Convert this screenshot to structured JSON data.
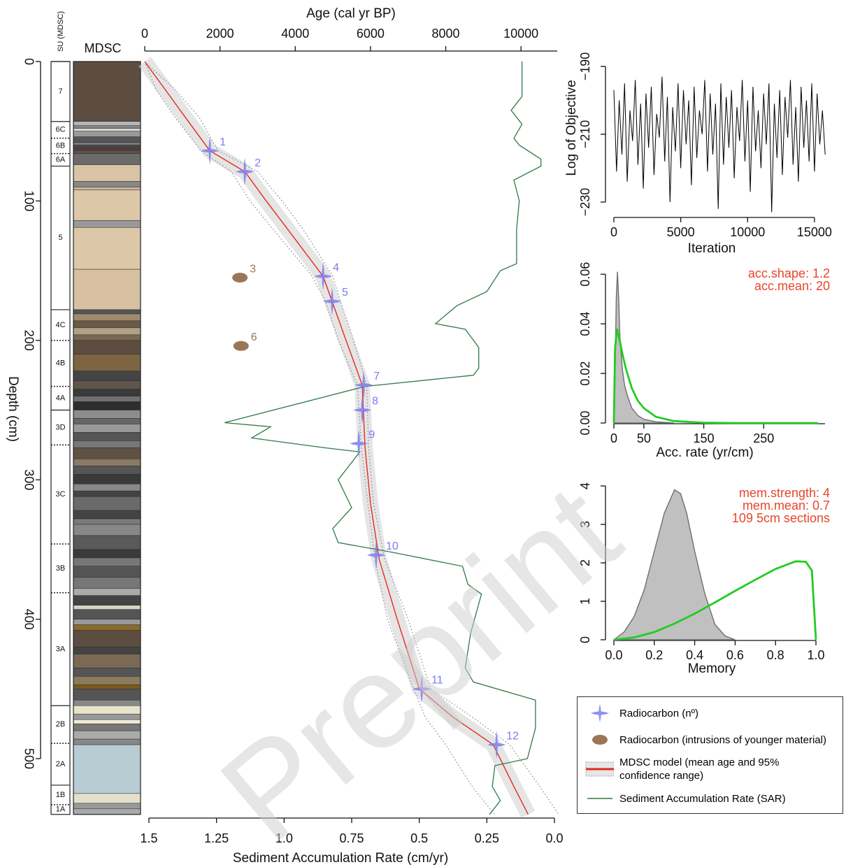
{
  "chart_data": [
    {
      "type": "line",
      "xlabel": "Age (cal yr BP)",
      "x2label": "Sediment Accumulation Rate (cm/yr)",
      "ylabel": "Depth (cm)",
      "xlim": [
        0,
        11000
      ],
      "xticks": [
        0,
        2000,
        4000,
        6000,
        8000,
        10000
      ],
      "x2lim": [
        1.5,
        0
      ],
      "x2ticks": [
        1.5,
        1.25,
        {
          "value": 1,
          "label": "1.0"
        },
        0.75,
        0.5,
        0.25,
        {
          "value": 0,
          "label": "0.0"
        }
      ],
      "ylim": [
        0,
        540
      ],
      "yticks": [
        0,
        100,
        200,
        300,
        400,
        500
      ],
      "y_inverted": true,
      "su": {
        "title": "SU (MDSC)",
        "labels": [
          "7",
          "6C",
          "6B",
          "6A",
          "5",
          "4C",
          "4B",
          "4A",
          "3D",
          "3C",
          "3B",
          "3A",
          "2B",
          "2A",
          "1B",
          "1A"
        ],
        "tops": [
          0,
          43,
          55,
          66,
          75,
          178,
          200,
          233,
          250,
          275,
          346,
          381,
          462,
          489,
          519,
          533
        ]
      },
      "lithology": {
        "title": "MDSC",
        "tops": [
          0,
          43,
          46,
          48,
          50,
          54,
          58,
          60,
          63,
          64,
          66,
          74,
          86,
          90,
          92,
          114,
          119,
          149,
          178,
          181,
          186,
          191,
          196,
          200,
          210,
          222,
          229,
          235,
          240,
          244,
          250,
          256,
          260,
          266,
          272,
          277,
          285,
          290,
          296,
          303,
          308,
          312,
          322,
          328,
          332,
          340,
          350,
          356,
          362,
          370,
          378,
          383,
          390,
          393,
          400,
          404,
          408,
          420,
          425,
          435,
          441,
          447,
          450,
          458,
          462,
          468,
          472,
          475,
          480,
          486,
          490,
          525,
          532,
          536
        ],
        "colors": [
          "#5c4d40",
          "#b5b5b5",
          "#858585",
          "#d8d4cc",
          "#9a9a9a",
          "#555555",
          "#7a7a7a",
          "#444444",
          "#8b3b2b",
          "#555555",
          "#6b6b6b",
          "#d8c3a5",
          "#888888",
          "#c9b89b",
          "#dcc7a8",
          "#999999",
          "#dcc7a8",
          "#d6c0a0",
          "#555555",
          "#a08a6e",
          "#6a5a48",
          "#b3a184",
          "#7a6a55",
          "#5c4d40",
          "#7d6542",
          "#444444",
          "#5f554a",
          "#3a3a3a",
          "#707070",
          "#2e2e2e",
          "#8d8d8d",
          "#666666",
          "#999999",
          "#555555",
          "#777777",
          "#5e5245",
          "#8a7a66",
          "#555555",
          "#3a3a3a",
          "#888888",
          "#444444",
          "#6a6a6a",
          "#444444",
          "#7a7a7a",
          "#888888",
          "#5a5a5a",
          "#3a3a3a",
          "#777777",
          "#555555",
          "#777777",
          "#aaaaaa",
          "#444444",
          "#d8d4c4",
          "#555555",
          "#9a9a9a",
          "#8a6a2a",
          "#5c4d40",
          "#444444",
          "#7a6a55",
          "#555555",
          "#8a7a5e",
          "#7a5a1a",
          "#555555",
          "#888888",
          "#e8e4cc",
          "#999999",
          "#f0ecd8",
          "#777777",
          "#aaaaaa",
          "#888888",
          "#b8ccd3",
          "#e4e0cc",
          "#999999",
          "#aaaaaa"
        ]
      },
      "series": [
        {
          "name": "Radiocarbon (nº)",
          "kind": "dates",
          "color": "#7c7cf0",
          "labels": [
            "1",
            "2",
            "4",
            "5",
            "7",
            "8",
            "9",
            "10",
            "11",
            "12"
          ],
          "x": [
            1730,
            2660,
            4740,
            4980,
            5820,
            5780,
            5690,
            6150,
            7360,
            9350
          ],
          "values": [
            64,
            79,
            154,
            172,
            232,
            250,
            274,
            354,
            450,
            490
          ]
        },
        {
          "name": "Radiocarbon (intrusions of younger material)",
          "kind": "intrusions",
          "color": "#9a7656",
          "labels": [
            "3",
            "6"
          ],
          "x": [
            2530,
            2560
          ],
          "values": [
            155,
            204
          ]
        },
        {
          "name": "MDSC model (mean age and 95% confidence range)",
          "kind": "model",
          "color": "#e32b1c",
          "x": [
            0,
            540,
            1080,
            1730,
            2660,
            3230,
            3790,
            4740,
            4980,
            5350,
            5780,
            5855,
            6000,
            6230,
            6710,
            7300,
            8180,
            9260,
            9810,
            10190
          ],
          "values": [
            0,
            20,
            40,
            64,
            79,
            100,
            120,
            154,
            172,
            200,
            232,
            277,
            317,
            357,
            400,
            450,
            470,
            490,
            520,
            540
          ]
        },
        {
          "kind": "dotted",
          "color": "#8a8a8a",
          "x": [
            0,
            300,
            800,
            1500,
            2300,
            2800,
            3400,
            4450,
            4800,
            5150,
            5650,
            5760,
            5930,
            6120,
            6450,
            7150,
            7450,
            8000,
            8700,
            9300
          ],
          "values": [
            0,
            20,
            40,
            64,
            79,
            100,
            120,
            154,
            172,
            200,
            232,
            277,
            317,
            357,
            400,
            450,
            470,
            490,
            520,
            540
          ]
        },
        {
          "kind": "dotted",
          "color": "#8a8a8a",
          "x": [
            0,
            800,
            1450,
            1950,
            3000,
            3650,
            4200,
            5000,
            5200,
            5550,
            5900,
            5950,
            6080,
            6380,
            7000,
            7600,
            8700,
            9700,
            10500,
            11000
          ],
          "values": [
            0,
            20,
            40,
            64,
            79,
            100,
            120,
            154,
            172,
            200,
            232,
            277,
            317,
            357,
            400,
            450,
            470,
            490,
            520,
            540
          ]
        },
        {
          "name": "Sediment Accumulation Rate (SAR)",
          "kind": "line",
          "axis": "x2",
          "color": "#2f7a47",
          "x": [
            0.12,
            0.12,
            0.16,
            0.12,
            0.15,
            0.13,
            0.05,
            0.05,
            0.15,
            0.13,
            0.14,
            0.14,
            0.2,
            0.25,
            0.36,
            0.44,
            0.33,
            0.28,
            0.28,
            0.3,
            0.7,
            1.22,
            1.05,
            1.12,
            0.85,
            0.72,
            0.8,
            0.75,
            0.82,
            0.8,
            0.6,
            0.34,
            0.32,
            0.27,
            0.31,
            0.33,
            0.3,
            0.07,
            0.07,
            0.1,
            0.22,
            0.23,
            0.2,
            0.24
          ],
          "values": [
            0,
            25,
            35,
            45,
            55,
            60,
            70,
            75,
            85,
            100,
            120,
            145,
            150,
            165,
            175,
            188,
            192,
            205,
            220,
            225,
            233,
            259,
            262,
            270,
            277,
            280,
            300,
            320,
            335,
            345,
            352,
            362,
            375,
            382,
            410,
            435,
            445,
            458,
            478,
            500,
            505,
            520,
            530,
            540
          ]
        }
      ]
    },
    {
      "type": "line",
      "xlabel": "Iteration",
      "ylabel": "Log of Objective",
      "xlim": [
        0,
        16000
      ],
      "xticks": [
        0,
        5000,
        10000,
        15000
      ],
      "ylim": [
        -234,
        -186
      ],
      "yticks": [
        {
          "value": -190,
          "label": "−190"
        },
        {
          "value": -210,
          "label": "−210"
        },
        {
          "value": -230,
          "label": "−230"
        }
      ],
      "series": [
        {
          "kind": "line",
          "color": "#000000",
          "x": [
            0,
            200,
            400,
            600,
            800,
            1000,
            1200,
            1400,
            1600,
            1800,
            2000,
            2200,
            2400,
            2600,
            2800,
            3000,
            3200,
            3400,
            3600,
            3800,
            4000,
            4200,
            4400,
            4600,
            4800,
            5000,
            5200,
            5400,
            5600,
            5800,
            6000,
            6200,
            6400,
            6600,
            6800,
            7000,
            7200,
            7400,
            7600,
            7800,
            8000,
            8200,
            8400,
            8600,
            8800,
            9000,
            9200,
            9400,
            9600,
            9800,
            10000,
            10200,
            10400,
            10600,
            10800,
            11000,
            11200,
            11400,
            11600,
            11800,
            12000,
            12200,
            12400,
            12600,
            12800,
            13000,
            13200,
            13400,
            13600,
            13800,
            14000,
            14200,
            14400,
            14600,
            14800,
            15000,
            15200,
            15400,
            15600,
            15800
          ],
          "values": [
            -197,
            -221,
            -200,
            -216,
            -195,
            -224,
            -203,
            -212,
            -194,
            -219,
            -201,
            -226,
            -198,
            -214,
            -196,
            -222,
            -204,
            -211,
            -193,
            -218,
            -199,
            -230,
            -202,
            -215,
            -195,
            -220,
            -197,
            -213,
            -200,
            -225,
            -196,
            -217,
            -203,
            -210,
            -194,
            -221,
            -198,
            -216,
            -201,
            -232,
            -195,
            -219,
            -199,
            -214,
            -197,
            -223,
            -202,
            -212,
            -194,
            -218,
            -200,
            -227,
            -196,
            -215,
            -203,
            -220,
            -198,
            -213,
            -195,
            -233,
            -201,
            -217,
            -197,
            -222,
            -199,
            -211,
            -194,
            -219,
            -202,
            -224,
            -196,
            -214,
            -200,
            -218,
            -195,
            -221,
            -198,
            -213,
            -203,
            -216
          ]
        }
      ]
    },
    {
      "type": "area",
      "xlabel": "Acc. rate (yr/cm)",
      "xlim": [
        0,
        350
      ],
      "xticks": [
        0,
        50,
        150,
        250
      ],
      "ylim": [
        0,
        0.064
      ],
      "yticks": [
        {
          "value": 0,
          "label": "0.00"
        },
        {
          "value": 0.02,
          "label": "0.02"
        },
        {
          "value": 0.04,
          "label": "0.04"
        },
        {
          "value": 0.06,
          "label": "0.06"
        }
      ],
      "annotations": [
        "acc.shape:  1.2",
        "acc.mean:  20"
      ],
      "series": [
        {
          "kind": "area",
          "color": "#c0c0c0",
          "x": [
            0,
            2,
            4,
            6,
            8,
            10,
            14,
            18,
            24,
            30,
            40,
            50,
            70,
            100
          ],
          "values": [
            0,
            0.02,
            0.05,
            0.061,
            0.05,
            0.035,
            0.022,
            0.015,
            0.01,
            0.006,
            0.003,
            0.0015,
            0.0005,
            0
          ]
        },
        {
          "kind": "line",
          "color": "#22cc22",
          "x": [
            0,
            2,
            5,
            10,
            15,
            20,
            30,
            40,
            50,
            70,
            100,
            150,
            200,
            300,
            340
          ],
          "values": [
            0,
            0.03,
            0.038,
            0.033,
            0.027,
            0.022,
            0.014,
            0.009,
            0.006,
            0.0025,
            0.0008,
            0.0001,
            0,
            0,
            0
          ]
        }
      ]
    },
    {
      "type": "area",
      "xlabel": "Memory",
      "xlim": [
        0,
        1
      ],
      "xticks": [
        {
          "value": 0,
          "label": "0.0"
        },
        0.2,
        0.4,
        0.6,
        0.8,
        {
          "value": 1,
          "label": "1.0"
        }
      ],
      "ylim": [
        0,
        4.1
      ],
      "yticks": [
        0,
        1,
        2,
        3,
        4
      ],
      "annotations": [
        "mem.strength: 4",
        "mem.mean: 0.7",
        "109 5cm sections"
      ],
      "series": [
        {
          "kind": "area",
          "color": "#c0c0c0",
          "x": [
            0,
            0.05,
            0.1,
            0.15,
            0.2,
            0.25,
            0.3,
            0.33,
            0.36,
            0.4,
            0.45,
            0.5,
            0.55,
            0.6
          ],
          "values": [
            0,
            0.2,
            0.6,
            1.3,
            2.3,
            3.3,
            3.9,
            3.8,
            3.3,
            2.3,
            1.2,
            0.4,
            0.1,
            0
          ]
        },
        {
          "kind": "line",
          "color": "#22cc22",
          "x": [
            0,
            0.1,
            0.2,
            0.3,
            0.4,
            0.5,
            0.6,
            0.7,
            0.8,
            0.9,
            0.95,
            0.98,
            1
          ],
          "values": [
            0,
            0.06,
            0.2,
            0.42,
            0.68,
            0.97,
            1.27,
            1.56,
            1.84,
            2.04,
            2.03,
            1.8,
            0
          ]
        }
      ]
    }
  ],
  "watermark": "Preprint"
}
